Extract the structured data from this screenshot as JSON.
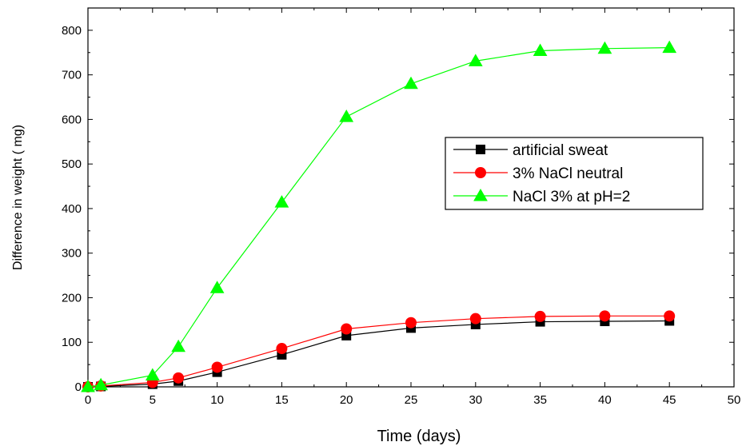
{
  "chart_data": {
    "type": "line",
    "title": "",
    "xlabel": "Time (days)",
    "ylabel": "Difference in weight (   mg)",
    "xlim": [
      0,
      50
    ],
    "ylim": [
      0,
      850
    ],
    "xticks": [
      0,
      5,
      10,
      15,
      20,
      25,
      30,
      35,
      40,
      45,
      50
    ],
    "yticks": [
      0,
      100,
      200,
      300,
      400,
      500,
      600,
      700,
      800
    ],
    "grid": false,
    "legend_position": "right, middle",
    "series": [
      {
        "name": "artificial sweat",
        "color": "#000000",
        "marker": "square",
        "x": [
          0,
          1,
          5,
          7,
          10,
          15,
          20,
          25,
          30,
          35,
          40,
          45
        ],
        "y": [
          0,
          1,
          6,
          13,
          33,
          72,
          115,
          132,
          140,
          146,
          147,
          148
        ]
      },
      {
        "name": "3% NaCl neutral",
        "color": "#ff0000",
        "marker": "circle",
        "x": [
          0,
          1,
          5,
          7,
          10,
          15,
          20,
          25,
          30,
          35,
          40,
          45
        ],
        "y": [
          0,
          2,
          10,
          20,
          44,
          86,
          130,
          144,
          153,
          158,
          159,
          159
        ]
      },
      {
        "name": "NaCl 3% at pH=2",
        "color": "#00ff00",
        "marker": "triangle",
        "x": [
          0,
          1,
          5,
          7,
          10,
          15,
          20,
          25,
          30,
          35,
          40,
          45
        ],
        "y": [
          0,
          4,
          26,
          90,
          222,
          414,
          606,
          680,
          731,
          754,
          759,
          761
        ]
      }
    ]
  }
}
